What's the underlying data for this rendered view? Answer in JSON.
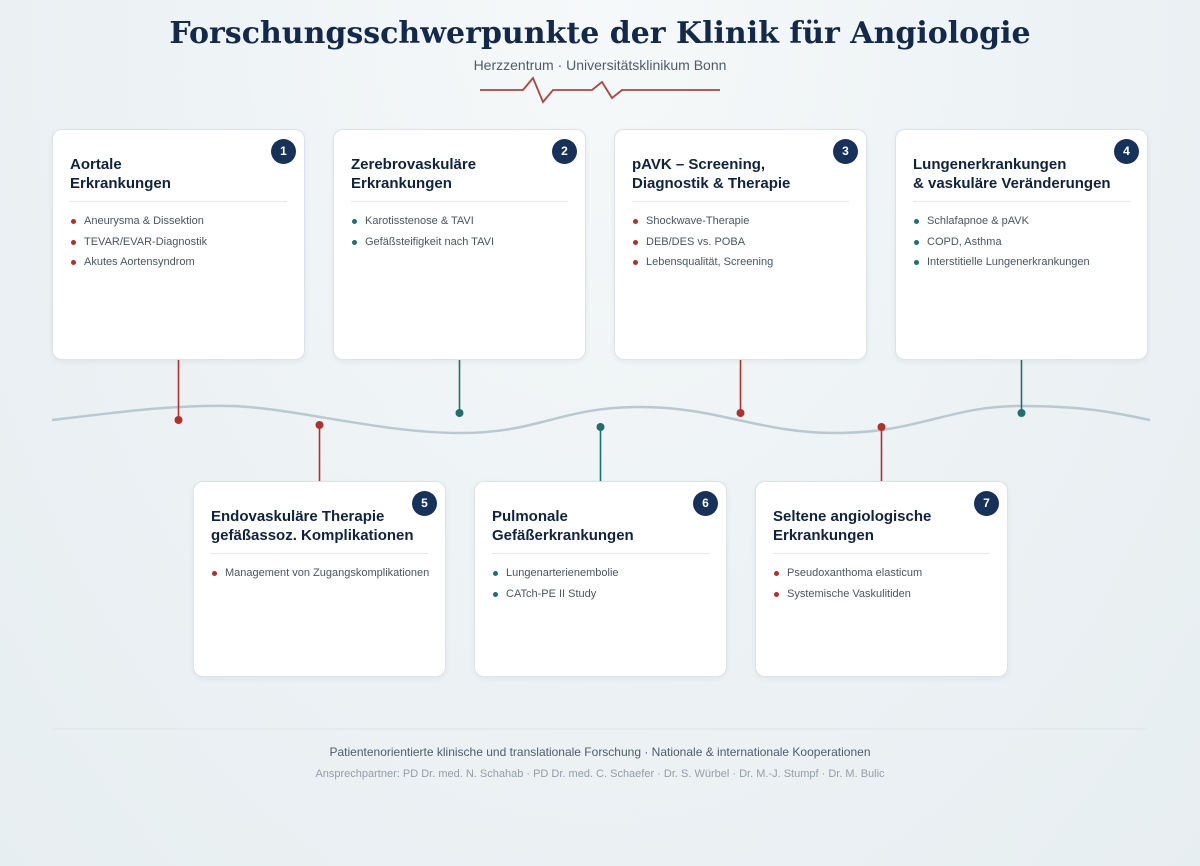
{
  "header": {
    "title": "Forschungsschwerpunkte der Klinik für Angiologie",
    "subtitle": "Herzzentrum · Universitätsklinikum Bonn"
  },
  "cards": [
    {
      "number": "1",
      "title_lines": [
        "Aortale",
        "Erkrankungen"
      ],
      "items": [
        "Aneurysma & Dissektion",
        "TEVAR/EVAR-Diagnostik",
        "Akutes Aortensyndrom"
      ]
    },
    {
      "number": "2",
      "title_lines": [
        "Zerebrovaskuläre",
        "Erkrankungen"
      ],
      "items": [
        "Karotisstenose & TAVI",
        "Gefäßsteifigkeit nach TAVI"
      ]
    },
    {
      "number": "3",
      "title_lines": [
        "pAVK – Screening,",
        "Diagnostik & Therapie"
      ],
      "items": [
        "Shockwave-Therapie",
        "DEB/DES vs. POBA",
        "Lebensqualität, Screening"
      ]
    },
    {
      "number": "4",
      "title_lines": [
        "Lungenerkrankungen",
        "& vaskuläre Veränderungen"
      ],
      "items": [
        "Schlafapnoe & pAVK",
        "COPD, Asthma",
        "Interstitielle Lungenerkrankungen"
      ]
    },
    {
      "number": "5",
      "title_lines": [
        "Endovaskuläre Therapie",
        "gefäßassoz. Komplikationen"
      ],
      "items": [
        "Management von Zugangskomplikationen"
      ]
    },
    {
      "number": "6",
      "title_lines": [
        "Pulmonale",
        "Gefäßerkrankungen"
      ],
      "items": [
        "Lungenarterienembolie",
        "CATch-PE II Study"
      ]
    },
    {
      "number": "7",
      "title_lines": [
        "Seltene angiologische",
        "Erkrankungen"
      ],
      "items": [
        "Pseudoxanthoma elasticum",
        "Systemische Vaskulitiden"
      ]
    }
  ],
  "footer": {
    "line1": "Patientenorientierte klinische und translationale Forschung · Nationale & internationale Kooperationen",
    "line2": "Ansprechpartner: PD Dr. med. N. Schahab · PD Dr. med. C. Schaefer · Dr. S. Würbel · Dr. M.-J. Stumpf · Dr. M. Bulic"
  }
}
